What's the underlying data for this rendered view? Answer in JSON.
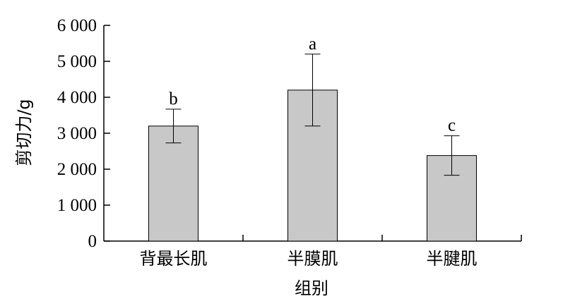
{
  "chart_data": {
    "type": "bar",
    "title": "",
    "xlabel": "组别",
    "ylabel": "剪切力/g",
    "categories": [
      "背最长肌",
      "半膜肌",
      "半腱肌"
    ],
    "values": [
      3200,
      4200,
      2380
    ],
    "error": [
      470,
      1000,
      550
    ],
    "significance": [
      "b",
      "a",
      "c"
    ],
    "ylim": [
      0,
      6000
    ],
    "yticks": [
      0,
      1000,
      2000,
      3000,
      4000,
      5000,
      6000
    ],
    "ytick_labels": [
      "0",
      "1 000",
      "2 000",
      "3 000",
      "4 000",
      "5 000",
      "6 000"
    ],
    "bar_color": "#c8c8c8",
    "grid": false,
    "legend": "none"
  }
}
